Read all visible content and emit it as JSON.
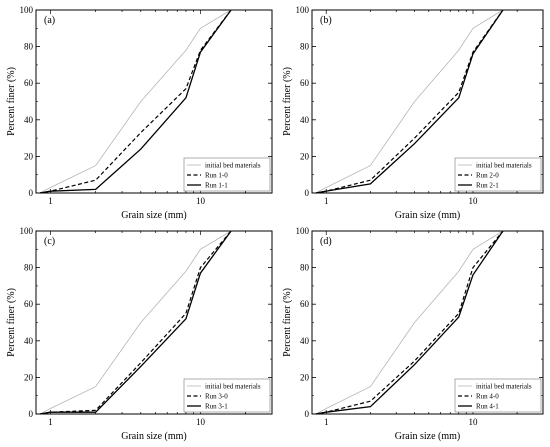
{
  "chart_data": [
    {
      "type": "line",
      "panel_label": "(a)",
      "xlabel": "Grain size (mm)",
      "ylabel": "Percent finer (%)",
      "x_scale": "log",
      "xlim": [
        0.8,
        30
      ],
      "ylim": [
        0,
        100
      ],
      "x_ticks": [
        1,
        10
      ],
      "y_ticks": [
        0,
        20,
        40,
        60,
        80,
        100
      ],
      "legend_position": "bottom-right",
      "series": [
        {
          "name": "initial bed materials",
          "style": "thin-gray",
          "color": "#b5b5b5",
          "x": [
            0.85,
            1,
            2,
            4,
            8,
            10,
            16
          ],
          "y": [
            0,
            3,
            15,
            50,
            78,
            90,
            100
          ]
        },
        {
          "name": "Run 1-0",
          "style": "dashed",
          "color": "#000000",
          "x": [
            0.85,
            1,
            2,
            4,
            8,
            10,
            16
          ],
          "y": [
            0,
            1,
            7,
            33,
            57,
            78,
            100
          ]
        },
        {
          "name": "Run 1-1",
          "style": "solid",
          "color": "#000000",
          "x": [
            0.85,
            1,
            2,
            4,
            8,
            10,
            16
          ],
          "y": [
            0,
            1,
            2,
            24,
            52,
            77,
            100
          ]
        }
      ]
    },
    {
      "type": "line",
      "panel_label": "(b)",
      "xlabel": "Grain size (mm)",
      "ylabel": "Percent finer (%)",
      "x_scale": "log",
      "xlim": [
        0.8,
        30
      ],
      "ylim": [
        0,
        100
      ],
      "x_ticks": [
        1,
        10
      ],
      "y_ticks": [
        0,
        20,
        40,
        60,
        80,
        100
      ],
      "legend_position": "bottom-right",
      "series": [
        {
          "name": "initial bed materials",
          "style": "thin-gray",
          "color": "#b5b5b5",
          "x": [
            0.85,
            1,
            2,
            4,
            8,
            10,
            16
          ],
          "y": [
            0,
            3,
            15,
            50,
            78,
            90,
            100
          ]
        },
        {
          "name": "Run 2-0",
          "style": "dashed",
          "color": "#000000",
          "x": [
            0.85,
            1,
            2,
            4,
            8,
            10,
            16
          ],
          "y": [
            0,
            1,
            7,
            30,
            55,
            77,
            100
          ]
        },
        {
          "name": "Run 2-1",
          "style": "solid",
          "color": "#000000",
          "x": [
            0.85,
            1,
            2,
            4,
            8,
            10,
            16
          ],
          "y": [
            0,
            1,
            5,
            27,
            52,
            76,
            100
          ]
        }
      ]
    },
    {
      "type": "line",
      "panel_label": "(c)",
      "xlabel": "Grain size (mm)",
      "ylabel": "Percent finer (%)",
      "x_scale": "log",
      "xlim": [
        0.8,
        30
      ],
      "ylim": [
        0,
        100
      ],
      "x_ticks": [
        1,
        10
      ],
      "y_ticks": [
        0,
        20,
        40,
        60,
        80,
        100
      ],
      "legend_position": "bottom-right",
      "series": [
        {
          "name": "initial bed materials",
          "style": "thin-gray",
          "color": "#b5b5b5",
          "x": [
            0.85,
            1,
            2,
            4,
            8,
            10,
            16
          ],
          "y": [
            0,
            3,
            15,
            50,
            78,
            90,
            100
          ]
        },
        {
          "name": "Run 3-0",
          "style": "dashed",
          "color": "#000000",
          "x": [
            0.85,
            1,
            2,
            4,
            8,
            10,
            16
          ],
          "y": [
            0,
            1,
            2,
            28,
            55,
            80,
            100
          ]
        },
        {
          "name": "Run 3-1",
          "style": "solid",
          "color": "#000000",
          "x": [
            0.85,
            1,
            2,
            4,
            8,
            10,
            16
          ],
          "y": [
            0,
            1,
            1,
            26,
            52,
            77,
            100
          ]
        }
      ]
    },
    {
      "type": "line",
      "panel_label": "(d)",
      "xlabel": "Grain size (mm)",
      "ylabel": "Percent finer (%)",
      "x_scale": "log",
      "xlim": [
        0.8,
        30
      ],
      "ylim": [
        0,
        100
      ],
      "x_ticks": [
        1,
        10
      ],
      "y_ticks": [
        0,
        20,
        40,
        60,
        80,
        100
      ],
      "legend_position": "bottom-right",
      "series": [
        {
          "name": "initial bed materials",
          "style": "thin-gray",
          "color": "#b5b5b5",
          "x": [
            0.85,
            1,
            2,
            4,
            8,
            10,
            16
          ],
          "y": [
            0,
            3,
            15,
            50,
            78,
            90,
            100
          ]
        },
        {
          "name": "Run 4-0",
          "style": "dashed",
          "color": "#000000",
          "x": [
            0.85,
            1,
            2,
            4,
            8,
            10,
            16
          ],
          "y": [
            0,
            1,
            7,
            29,
            55,
            80,
            100
          ]
        },
        {
          "name": "Run 4-1",
          "style": "solid",
          "color": "#000000",
          "x": [
            0.85,
            1,
            2,
            4,
            8,
            10,
            16
          ],
          "y": [
            0,
            1,
            4,
            27,
            53,
            76,
            100
          ]
        }
      ]
    }
  ]
}
